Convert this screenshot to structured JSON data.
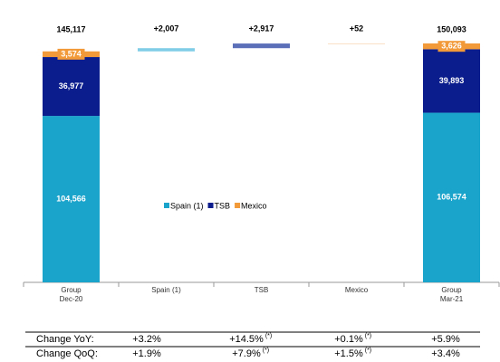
{
  "chart_data": {
    "type": "waterfall",
    "categories": [
      "Group\nDec-20",
      "Spain (1)",
      "TSB",
      "Mexico",
      "Group\nMar-21"
    ],
    "series": [
      {
        "name": "Spain (1)",
        "color": "#1aa3cb",
        "delta_color": "#7fcde6",
        "values": [
          104566,
          2007,
          null,
          null,
          106574
        ],
        "value_labels": [
          "104,566",
          "+2,007",
          null,
          null,
          "106,574"
        ]
      },
      {
        "name": "TSB",
        "color": "#0b1d8c",
        "delta_color": "#5b6fb9",
        "values": [
          36977,
          null,
          2917,
          null,
          39893
        ],
        "value_labels": [
          "36,977",
          null,
          "+2,917",
          null,
          "39,893"
        ]
      },
      {
        "name": "Mexico",
        "color": "#f29a3a",
        "delta_color": "#f6c08c",
        "values": [
          3574,
          null,
          null,
          52,
          3626
        ],
        "value_labels": [
          "3,574",
          null,
          null,
          "+52",
          "3,626"
        ]
      }
    ],
    "totals": [
      145117,
      null,
      null,
      null,
      150093
    ],
    "total_labels": [
      "145,117",
      null,
      null,
      null,
      "150,093"
    ],
    "legend": "center"
  },
  "table": {
    "rows": [
      [
        "Change YoY:",
        "+3.2%",
        [
          "+14.5%",
          "(*)"
        ],
        [
          "+0.1%",
          "(*)"
        ],
        "+5.9%"
      ],
      [
        "Change QoQ:",
        "+1.9%",
        [
          "+7.9%",
          "(*)"
        ],
        [
          "+1.5%",
          "(*)"
        ],
        "+3.4%"
      ]
    ]
  }
}
